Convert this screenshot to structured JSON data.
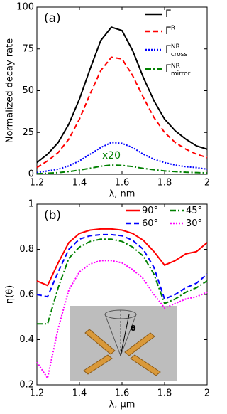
{
  "chart_data": [
    {
      "type": "line",
      "panel_label": "(a)",
      "x_label": "λ, nm",
      "y_label": "Normalized decay rate",
      "x": [
        1.2,
        1.25,
        1.3,
        1.35,
        1.4,
        1.45,
        1.5,
        1.55,
        1.6,
        1.65,
        1.7,
        1.75,
        1.8,
        1.85,
        1.9,
        1.95,
        2
      ],
      "xlim": [
        1.2,
        2
      ],
      "xticks": [
        1.2,
        1.4,
        1.6,
        1.8,
        2
      ],
      "ylim": [
        0,
        100
      ],
      "yticks": [
        0,
        25,
        50,
        75,
        100
      ],
      "annotation": {
        "text": "x20",
        "color": "#008000"
      },
      "series": [
        {
          "name": "Γ",
          "color": "#000000",
          "line_style": "solid",
          "values": [
            7,
            12,
            19,
            30,
            45,
            63,
            80,
            88,
            86,
            74,
            58,
            44,
            33,
            26,
            21,
            17,
            15
          ]
        },
        {
          "name": "Γ",
          "superscript": "R",
          "color": "#ff0000",
          "line_style": "dashed",
          "values": [
            4,
            8,
            13,
            21,
            33,
            48,
            62,
            70,
            69,
            59,
            46,
            34,
            25,
            19,
            15,
            12,
            10
          ]
        },
        {
          "name": "Γ",
          "superscript": "NR",
          "subscript": "cross",
          "color": "#0000ff",
          "line_style": "dotted",
          "values": [
            1,
            2,
            3,
            5,
            8,
            12,
            16,
            19,
            18.5,
            16,
            12,
            9,
            7,
            5.5,
            4.5,
            4,
            3
          ]
        },
        {
          "name": "Γ",
          "superscript": "NR",
          "subscript": "mirror",
          "color": "#008000",
          "line_style": "dashdot",
          "values": [
            0.3,
            0.6,
            1,
            1.6,
            2.5,
            3.6,
            4.8,
            5.5,
            5.3,
            4.6,
            3.5,
            2.7,
            2,
            1.6,
            1.2,
            1,
            0.8
          ]
        }
      ]
    },
    {
      "type": "line",
      "panel_label": "(b)",
      "x_label": "λ, μm",
      "y_label": "η(θ)",
      "inset_label": "θ",
      "x": [
        1.2,
        1.25,
        1.3,
        1.35,
        1.4,
        1.45,
        1.5,
        1.55,
        1.6,
        1.65,
        1.7,
        1.75,
        1.8,
        1.85,
        1.9,
        1.95,
        2
      ],
      "xlim": [
        1.2,
        2
      ],
      "xticks": [
        1.2,
        1.4,
        1.6,
        1.8,
        2
      ],
      "ylim": [
        0.2,
        1
      ],
      "yticks": [
        0.2,
        0.4,
        0.6,
        0.8,
        1
      ],
      "series": [
        {
          "name": "90°",
          "color": "#ff0000",
          "line_style": "solid",
          "values": [
            0.66,
            0.64,
            0.74,
            0.83,
            0.87,
            0.885,
            0.89,
            0.89,
            0.885,
            0.87,
            0.84,
            0.79,
            0.73,
            0.75,
            0.78,
            0.79,
            0.83
          ]
        },
        {
          "name": "60°",
          "color": "#0000ff",
          "line_style": "dashed",
          "values": [
            0.6,
            0.59,
            0.7,
            0.8,
            0.845,
            0.86,
            0.865,
            0.865,
            0.86,
            0.84,
            0.8,
            0.72,
            0.58,
            0.6,
            0.63,
            0.65,
            0.69
          ]
        },
        {
          "name": "45°",
          "color": "#008000",
          "line_style": "dashdot",
          "values": [
            0.47,
            0.47,
            0.63,
            0.76,
            0.81,
            0.835,
            0.845,
            0.845,
            0.835,
            0.81,
            0.77,
            0.69,
            0.56,
            0.58,
            0.61,
            0.63,
            0.66
          ]
        },
        {
          "name": "30°",
          "color": "#ff00ff",
          "line_style": "dotted",
          "values": [
            0.3,
            0.23,
            0.45,
            0.62,
            0.7,
            0.735,
            0.75,
            0.75,
            0.74,
            0.71,
            0.67,
            0.6,
            0.54,
            0.56,
            0.58,
            0.59,
            0.61
          ]
        }
      ]
    }
  ]
}
